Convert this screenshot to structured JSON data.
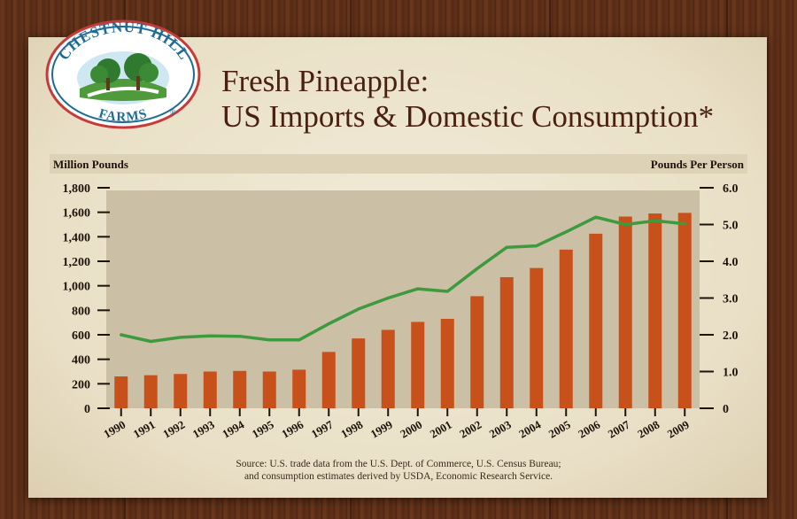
{
  "logo": {
    "text_top": "CHESTNUT HILL",
    "text_bottom": "FARMS",
    "trademark": "®"
  },
  "title": {
    "line1": "Fresh Pineapple:",
    "line2": "US Imports & Domestic Consumption*"
  },
  "source": {
    "line1": "Source: U.S. trade data from the U.S. Dept. of Commerce, U.S. Census Bureau;",
    "line2": "and consumption estimates derived by USDA, Economic Research Service."
  },
  "colors": {
    "bar": "#c8501a",
    "line": "#3d9a3d",
    "text": "#1e130b",
    "title": "#4a2010"
  },
  "chart_data": {
    "type": "bar",
    "title": "Fresh Pineapple: US Imports & Domestic Consumption*",
    "ylabel": "Million Pounds",
    "y2label": "Pounds Per Person",
    "ylim": [
      0,
      1800
    ],
    "y2lim": [
      0,
      6
    ],
    "yticks": [
      "0",
      "200",
      "400",
      "600",
      "800",
      "1,000",
      "1,200",
      "1,400",
      "1,600",
      "1,800"
    ],
    "y2ticks": [
      "0",
      "1.0",
      "2.0",
      "3.0",
      "4.0",
      "5.0",
      "6.0"
    ],
    "categories": [
      "1990",
      "1991",
      "1992",
      "1993",
      "1994",
      "1995",
      "1996",
      "1997",
      "1998",
      "1999",
      "2000",
      "2001",
      "2002",
      "2003",
      "2004",
      "2005",
      "2006",
      "2007",
      "2008",
      "2009"
    ],
    "series": [
      {
        "type": "bar",
        "axis": "left",
        "values": [
          260,
          270,
          280,
          300,
          305,
          300,
          315,
          460,
          570,
          640,
          705,
          730,
          915,
          1070,
          1145,
          1295,
          1425,
          1565,
          1590,
          1595
        ]
      },
      {
        "type": "line",
        "axis": "right",
        "values": [
          2.0,
          1.82,
          1.93,
          1.97,
          1.96,
          1.86,
          1.86,
          2.3,
          2.7,
          3.0,
          3.25,
          3.18,
          3.8,
          4.38,
          4.42,
          4.8,
          5.2,
          5.0,
          5.1,
          5.02
        ]
      }
    ]
  }
}
